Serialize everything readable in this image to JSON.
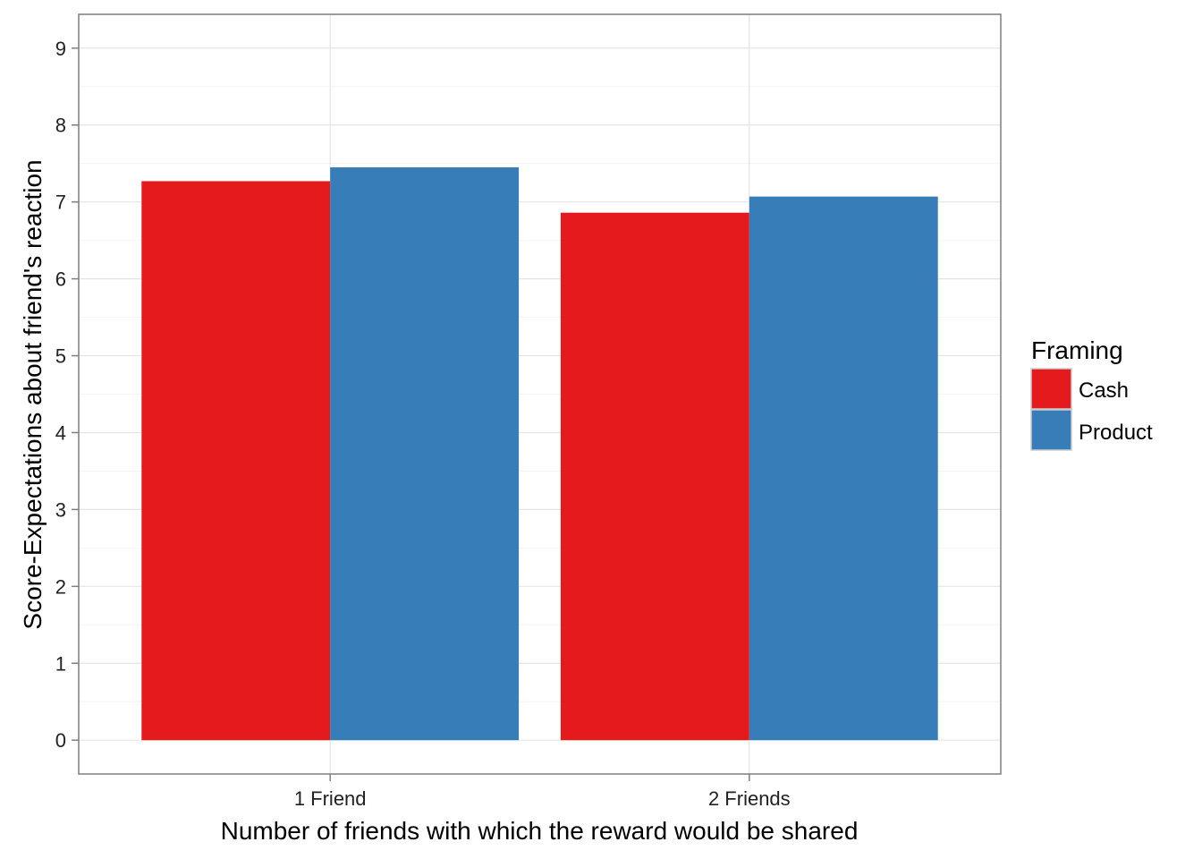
{
  "chart_data": {
    "type": "bar",
    "categories": [
      "1 Friend",
      "2 Friends"
    ],
    "series": [
      {
        "name": "Cash",
        "values": [
          7.27,
          6.86
        ],
        "color": "#E41A1C"
      },
      {
        "name": "Product",
        "values": [
          7.45,
          7.07
        ],
        "color": "#377EB8"
      }
    ],
    "xlabel": "Number of friends with which the reward would be shared",
    "ylabel": "Score-Expectations about friend's reaction",
    "ylim": [
      -0.44,
      9.44
    ],
    "yticks": [
      "0",
      "1",
      "2",
      "3",
      "4",
      "5",
      "6",
      "7",
      "8",
      "9"
    ],
    "legend": {
      "title": "Framing",
      "position": "right"
    },
    "grid": true
  }
}
